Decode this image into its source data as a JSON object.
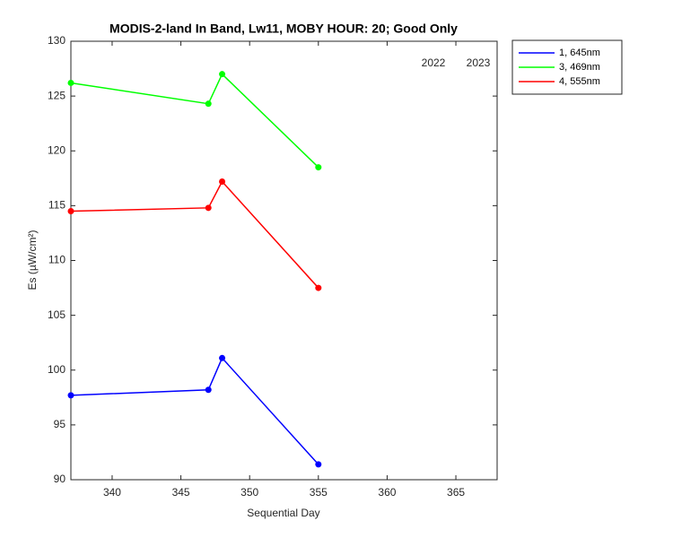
{
  "chart_data": {
    "type": "line",
    "title": "MODIS-2-land In Band,  Lw11, MOBY HOUR: 20;  Good Only",
    "x_label": "Sequential Day",
    "y_label": "Es (µW/cm²)",
    "annotations": [
      "2022",
      "2023"
    ],
    "x": [
      337,
      347,
      348,
      355
    ],
    "series": [
      {
        "name": "1, 645nm",
        "color": "#0000ff",
        "values": [
          97.7,
          98.2,
          101.1,
          91.4
        ]
      },
      {
        "name": "3, 469nm",
        "color": "#00ff00",
        "values": [
          126.2,
          124.3,
          127.0,
          118.5
        ]
      },
      {
        "name": "4, 555nm",
        "color": "#ff0000",
        "values": [
          114.5,
          114.8,
          117.2,
          107.5
        ]
      }
    ],
    "xlim": [
      337,
      368
    ],
    "xticks": [
      340,
      345,
      350,
      355,
      360,
      365
    ],
    "ylim": [
      90,
      130
    ],
    "yticks": [
      90,
      95,
      100,
      105,
      110,
      115,
      120,
      125,
      130
    ],
    "grid": false,
    "legend": "outside-right"
  }
}
